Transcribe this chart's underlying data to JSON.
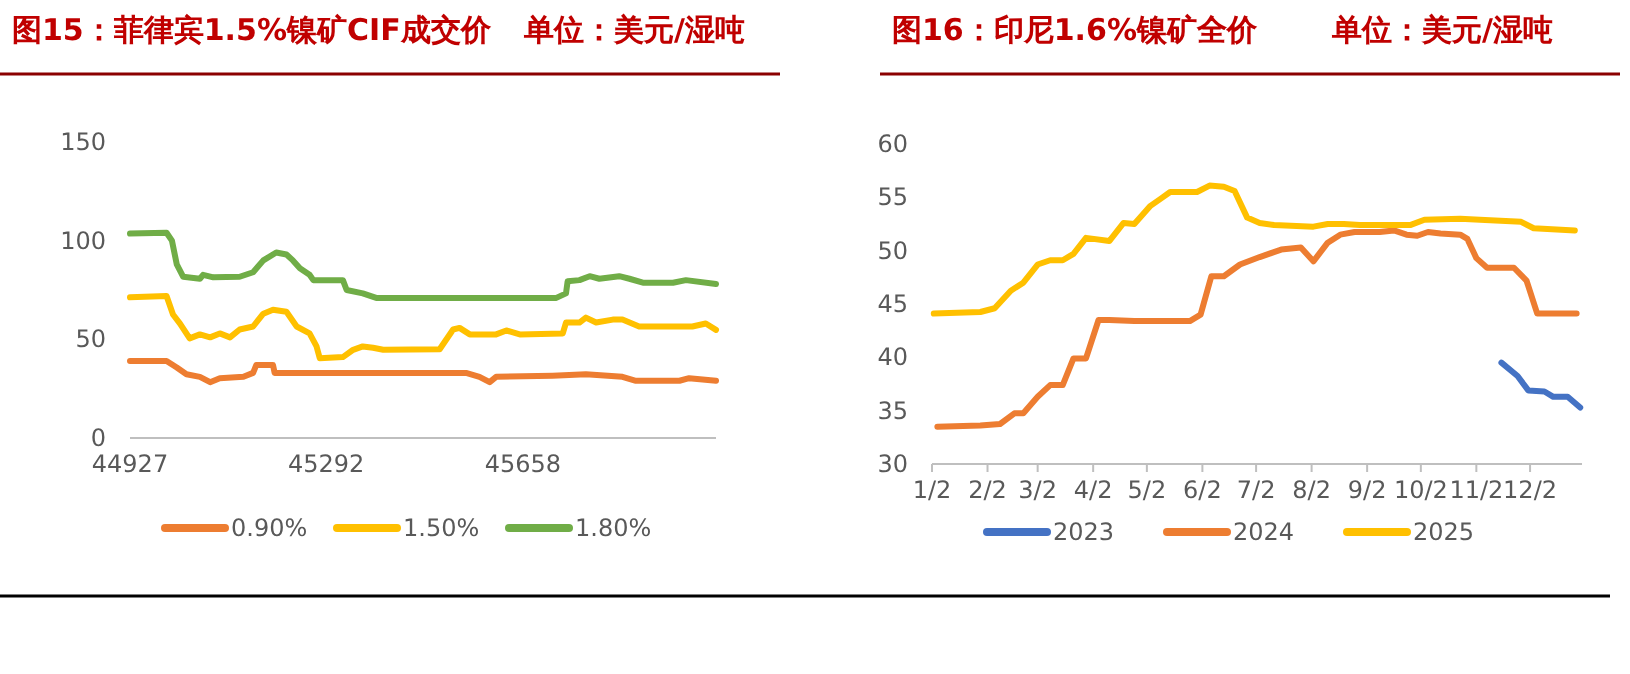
{
  "chart_data": [
    {
      "type": "line",
      "title": "图15：菲律宾1.5%镍矿CIF成交价",
      "subtitle": "单位：美元/湿吨",
      "legend": "bottom",
      "grid": false,
      "line_style": "solid",
      "marker": "none",
      "xlim": [
        44927,
        46017
      ],
      "xticks": [
        44927,
        45292,
        45658
      ],
      "ylim": [
        0,
        150
      ],
      "yticks": [
        0,
        50,
        100,
        150
      ],
      "series": [
        {
          "name": "0.90%",
          "color": "#ed7d31",
          "x": [
            44927,
            44995,
            45014,
            45032,
            45057,
            45076,
            45094,
            45138,
            45156,
            45162,
            45193,
            45196,
            45552,
            45577,
            45596,
            45608,
            45713,
            45775,
            45843,
            45868,
            45949,
            45967,
            46017
          ],
          "values": [
            39,
            39,
            35.7,
            32.3,
            31,
            28.3,
            30.3,
            31,
            33,
            37,
            37,
            33,
            33,
            31,
            28.3,
            31,
            31.6,
            32.3,
            31,
            29,
            29,
            30.3,
            29
          ]
        },
        {
          "name": "1.50%",
          "color": "#ffc000",
          "x": [
            44927,
            44995,
            45007,
            45020,
            45038,
            45057,
            45076,
            45094,
            45113,
            45131,
            45156,
            45175,
            45193,
            45218,
            45237,
            45261,
            45274,
            45280,
            45323,
            45342,
            45360,
            45379,
            45398,
            45503,
            45528,
            45540,
            45559,
            45608,
            45627,
            45652,
            45732,
            45738,
            45763,
            45775,
            45794,
            45825,
            45843,
            45874,
            45973,
            45998,
            46017
          ],
          "values": [
            71.3,
            72,
            62.6,
            58,
            50.5,
            52.5,
            51,
            53,
            51,
            55,
            56.5,
            63,
            65,
            64,
            56.5,
            53,
            46.4,
            40.4,
            41,
            44.7,
            46.4,
            45.7,
            44.7,
            45,
            55,
            55.8,
            52.5,
            52.5,
            54.5,
            52.5,
            53,
            58.5,
            58.5,
            61,
            58.5,
            60,
            60,
            56.5,
            56.5,
            58,
            54.8
          ]
        },
        {
          "name": "1.80%",
          "color": "#70ad47",
          "x": [
            44927,
            44995,
            45005,
            45014,
            45026,
            45057,
            45063,
            45082,
            45131,
            45156,
            45175,
            45199,
            45218,
            45230,
            45243,
            45261,
            45268,
            45323,
            45330,
            45360,
            45385,
            45720,
            45738,
            45741,
            45763,
            45782,
            45800,
            45837,
            45856,
            45881,
            45937,
            45961,
            46017
          ],
          "values": [
            103.6,
            104,
            100,
            88,
            81.7,
            80.7,
            82.7,
            81.4,
            81.7,
            84,
            90,
            94,
            93,
            90,
            86,
            82.7,
            80,
            80,
            75,
            73.3,
            71,
            71,
            73.3,
            79.4,
            80,
            82,
            80.7,
            82,
            80.7,
            78.7,
            78.7,
            80,
            78
          ]
        }
      ]
    },
    {
      "type": "line",
      "title": "图16：印尼1.6%镍矿全价",
      "subtitle": "单位：美元/湿吨",
      "legend": "bottom",
      "grid": false,
      "line_style": "solid",
      "marker": "none",
      "xlim": [
        "--01-02",
        "--12-31"
      ],
      "xticks": [
        {
          "value": "--01-02",
          "label": "1/2"
        },
        {
          "value": "--02-02",
          "label": "2/2"
        },
        {
          "value": "--03-02",
          "label": "3/2"
        },
        {
          "value": "--04-02",
          "label": "4/2"
        },
        {
          "value": "--05-02",
          "label": "5/2"
        },
        {
          "value": "--06-02",
          "label": "6/2"
        },
        {
          "value": "--07-02",
          "label": "7/2"
        },
        {
          "value": "--08-02",
          "label": "8/2"
        },
        {
          "value": "--09-02",
          "label": "9/2"
        },
        {
          "value": "--10-02",
          "label": "10/2"
        },
        {
          "value": "--11-02",
          "label": "11/2"
        },
        {
          "value": "--12-02",
          "label": "12/2"
        }
      ],
      "ylim": [
        30,
        60
      ],
      "yticks": [
        30,
        35,
        40,
        45,
        50,
        55,
        60
      ],
      "series": [
        {
          "name": "2023",
          "color": "#4472c4",
          "x": [
            "--11-16",
            "--11-25",
            "--12-01",
            "--12-10",
            "--12-15",
            "--12-23",
            "--12-30"
          ],
          "values": [
            39.5,
            38.25,
            36.9,
            36.8,
            36.3,
            36.3,
            35.3
          ]
        },
        {
          "name": "2024",
          "color": "#ed7d31",
          "x": [
            "--01-05",
            "--01-29",
            "--02-09",
            "--02-17",
            "--02-22",
            "--03-02",
            "--03-09",
            "--03-16",
            "--03-22",
            "--03-29",
            "--04-05",
            "--04-11",
            "--04-25",
            "--05-26",
            "--06-01",
            "--06-07",
            "--06-14",
            "--06-23",
            "--07-04",
            "--07-16",
            "--07-27",
            "--08-03",
            "--08-11",
            "--08-18",
            "--08-26",
            "--09-09",
            "--09-17",
            "--09-24",
            "--09-30",
            "--10-06",
            "--10-13",
            "--10-24",
            "--10-28",
            "--11-02",
            "--11-08",
            "--11-23",
            "--11-30",
            "--12-06",
            "--12-28"
          ],
          "values": [
            33.5,
            33.6,
            33.75,
            34.75,
            34.75,
            36.3,
            37.4,
            37.4,
            39.9,
            39.9,
            43.5,
            43.5,
            43.4,
            43.4,
            44,
            47.6,
            47.6,
            48.7,
            49.4,
            50.1,
            50.3,
            49,
            50.75,
            51.5,
            51.75,
            51.75,
            51.9,
            51.5,
            51.4,
            51.75,
            51.6,
            51.5,
            51.1,
            49.3,
            48.4,
            48.4,
            47.2,
            44.1,
            44.1
          ]
        },
        {
          "name": "2025",
          "color": "#ffc000",
          "x": [
            "--01-03",
            "--01-29",
            "--02-06",
            "--02-15",
            "--02-22",
            "--03-02",
            "--03-09",
            "--03-16",
            "--03-22",
            "--03-29",
            "--04-11",
            "--04-19",
            "--04-25",
            "--05-04",
            "--05-10",
            "--05-15",
            "--05-30",
            "--06-06",
            "--06-14",
            "--06-20",
            "--06-27",
            "--07-04",
            "--07-12",
            "--08-03",
            "--08-11",
            "--08-20",
            "--08-29",
            "--09-26",
            "--10-04",
            "--10-24",
            "--11-04",
            "--11-27",
            "--12-04",
            "--12-27"
          ],
          "values": [
            44.1,
            44.25,
            44.6,
            46.25,
            47,
            48.7,
            49.1,
            49.1,
            49.7,
            51.2,
            50.9,
            52.6,
            52.5,
            54.2,
            54.9,
            55.5,
            55.5,
            56.1,
            56,
            55.6,
            53.1,
            52.6,
            52.4,
            52.25,
            52.5,
            52.5,
            52.4,
            52.4,
            52.9,
            53,
            52.9,
            52.7,
            52.1,
            51.9
          ]
        }
      ]
    }
  ]
}
